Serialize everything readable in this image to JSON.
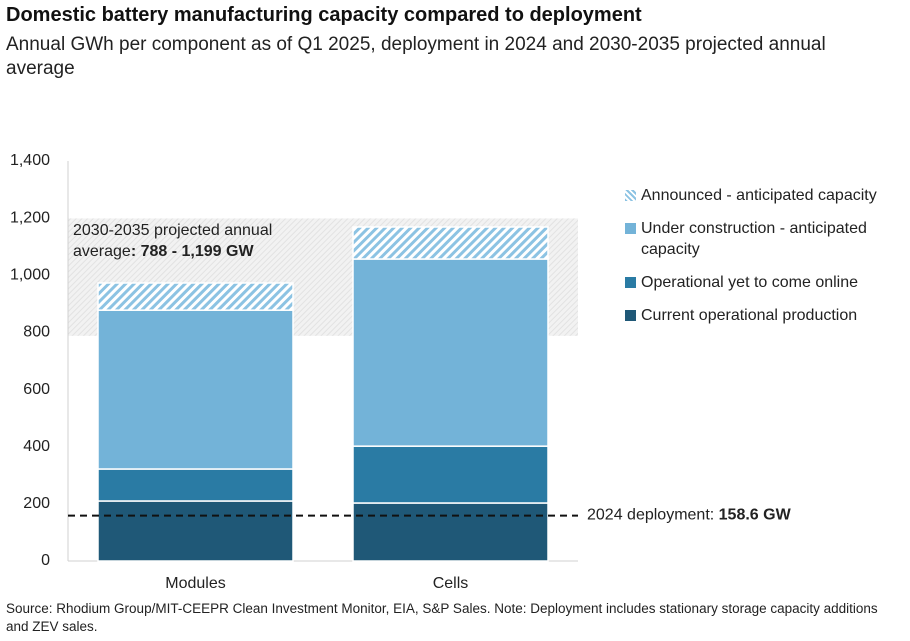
{
  "chart_data": {
    "type": "stacked_bar",
    "title": "Domestic battery manufacturing capacity compared to deployment",
    "subtitle": "Annual GWh per component as of Q1 2025, deployment in 2024 and 2030-2035 projected annual average",
    "categories": [
      "Modules",
      "Cells"
    ],
    "series": [
      {
        "name": "Current operational production",
        "color": "#1f5877",
        "values": [
          210,
          203
        ]
      },
      {
        "name": "Operational yet to come online",
        "color": "#2a7ba4",
        "values": [
          112,
          199
        ]
      },
      {
        "name": "Under construction - anticipated capacity",
        "color": "#73b3d8",
        "values": [
          556,
          655
        ]
      },
      {
        "name": "Announced - anticipated capacity",
        "color": "#8cc3e3",
        "pattern": "hatch",
        "values": [
          95,
          112
        ]
      }
    ],
    "ylim": [
      0,
      1400
    ],
    "yticks": [
      0,
      200,
      400,
      600,
      800,
      {
        "value": 1000,
        "label": "1,000"
      },
      {
        "value": 1200,
        "label": "1,200"
      },
      {
        "value": 1400,
        "label": "1,400"
      }
    ],
    "grid": false,
    "band": {
      "range": [
        788,
        1199
      ],
      "label_lines": [
        "2030-2035 projected annual",
        "average"
      ],
      "value_label": ": 788 - 1,199 GW"
    },
    "deployment": {
      "value": 158.6,
      "label": "2024 deployment: ",
      "value_label": "158.6 GW"
    },
    "legend": "right",
    "source": "Source: Rhodium Group/MIT-CEEPR Clean Investment Monitor, EIA, S&P Sales. Note: Deployment includes stationary storage capacity additions and ZEV sales."
  }
}
